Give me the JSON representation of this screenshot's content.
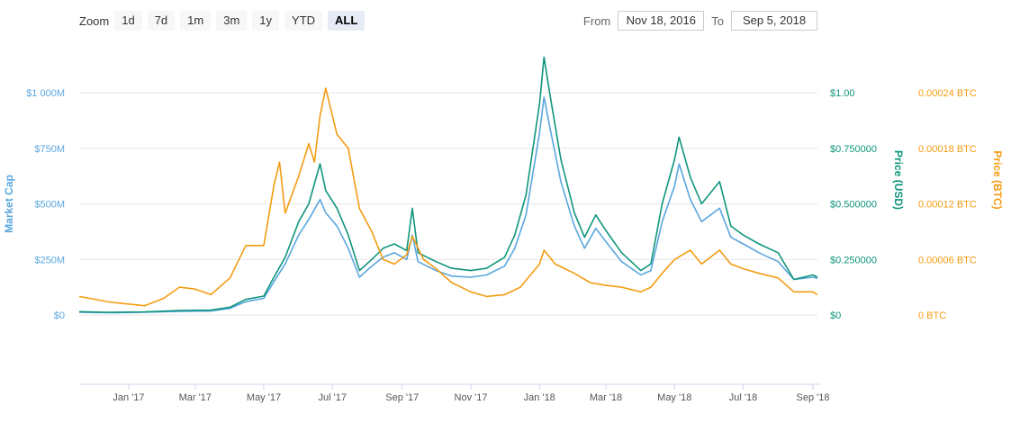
{
  "toolbar": {
    "zoom_label": "Zoom",
    "zoom_buttons": [
      {
        "label": "1d",
        "active": false
      },
      {
        "label": "7d",
        "active": false
      },
      {
        "label": "1m",
        "active": false
      },
      {
        "label": "3m",
        "active": false
      },
      {
        "label": "1y",
        "active": false
      },
      {
        "label": "YTD",
        "active": false
      },
      {
        "label": "ALL",
        "active": true
      }
    ],
    "from_label": "From",
    "from_value": "Nov 18, 2016",
    "to_label": "To",
    "to_value": "Sep 5, 2018"
  },
  "colors": {
    "market_cap": "#5aa7de",
    "price_usd": "#10957c",
    "price_btc": "#f39c12",
    "grid": "#e6e6e6"
  },
  "chart_data": {
    "type": "line",
    "x_range": [
      "2016-11-18",
      "2018-09-05"
    ],
    "x_ticks": [
      {
        "date": "2017-01-01",
        "label": "Jan '17"
      },
      {
        "date": "2017-03-01",
        "label": "Mar '17"
      },
      {
        "date": "2017-05-01",
        "label": "May '17"
      },
      {
        "date": "2017-07-01",
        "label": "Jul '17"
      },
      {
        "date": "2017-09-01",
        "label": "Sep '17"
      },
      {
        "date": "2017-11-01",
        "label": "Nov '17"
      },
      {
        "date": "2018-01-01",
        "label": "Jan '18"
      },
      {
        "date": "2018-03-01",
        "label": "Mar '18"
      },
      {
        "date": "2018-05-01",
        "label": "May '18"
      },
      {
        "date": "2018-07-01",
        "label": "Jul '18"
      },
      {
        "date": "2018-09-01",
        "label": "Sep '18"
      }
    ],
    "axes": {
      "market_cap": {
        "title": "Market Cap",
        "range": [
          0,
          1000
        ],
        "ticks": [
          {
            "v": 0,
            "label": "$0"
          },
          {
            "v": 250,
            "label": "$250M"
          },
          {
            "v": 500,
            "label": "$500M"
          },
          {
            "v": 750,
            "label": "$750M"
          },
          {
            "v": 1000,
            "label": "$1 000M"
          }
        ]
      },
      "price_usd": {
        "title": "Price (USD)",
        "range": [
          0,
          1
        ],
        "ticks": [
          {
            "v": 0,
            "label": "$0"
          },
          {
            "v": 0.25,
            "label": "$0.250000"
          },
          {
            "v": 0.5,
            "label": "$0.500000"
          },
          {
            "v": 0.75,
            "label": "$0.750000"
          },
          {
            "v": 1,
            "label": "$1.00"
          }
        ]
      },
      "price_btc": {
        "title": "Price (BTC)",
        "range": [
          0,
          0.00024
        ],
        "ticks": [
          {
            "v": 0,
            "label": "0 BTC"
          },
          {
            "v": 6e-05,
            "label": "0.00006 BTC"
          },
          {
            "v": 0.00012,
            "label": "0.00012 BTC"
          },
          {
            "v": 0.00018,
            "label": "0.00018 BTC"
          },
          {
            "v": 0.00024,
            "label": "0.00024 BTC"
          }
        ]
      }
    },
    "grid": true,
    "series": [
      {
        "key": "market_cap",
        "axis": "market_cap",
        "points": [
          [
            "2016-11-18",
            12
          ],
          [
            "2016-12-15",
            10
          ],
          [
            "2017-01-15",
            12
          ],
          [
            "2017-02-15",
            16
          ],
          [
            "2017-03-15",
            18
          ],
          [
            "2017-04-01",
            30
          ],
          [
            "2017-04-15",
            60
          ],
          [
            "2017-05-01",
            75
          ],
          [
            "2017-05-10",
            150
          ],
          [
            "2017-05-20",
            230
          ],
          [
            "2017-06-01",
            360
          ],
          [
            "2017-06-10",
            430
          ],
          [
            "2017-06-20",
            520
          ],
          [
            "2017-06-25",
            460
          ],
          [
            "2017-07-05",
            400
          ],
          [
            "2017-07-15",
            300
          ],
          [
            "2017-07-25",
            170
          ],
          [
            "2017-08-05",
            220
          ],
          [
            "2017-08-15",
            260
          ],
          [
            "2017-08-25",
            280
          ],
          [
            "2017-09-05",
            250
          ],
          [
            "2017-09-10",
            360
          ],
          [
            "2017-09-15",
            240
          ],
          [
            "2017-10-01",
            200
          ],
          [
            "2017-10-15",
            175
          ],
          [
            "2017-11-01",
            170
          ],
          [
            "2017-11-15",
            180
          ],
          [
            "2017-12-01",
            220
          ],
          [
            "2017-12-10",
            300
          ],
          [
            "2017-12-20",
            450
          ],
          [
            "2018-01-01",
            820
          ],
          [
            "2018-01-05",
            980
          ],
          [
            "2018-01-10",
            850
          ],
          [
            "2018-01-20",
            600
          ],
          [
            "2018-02-01",
            400
          ],
          [
            "2018-02-10",
            300
          ],
          [
            "2018-02-20",
            390
          ],
          [
            "2018-03-01",
            330
          ],
          [
            "2018-03-15",
            240
          ],
          [
            "2018-04-01",
            180
          ],
          [
            "2018-04-10",
            200
          ],
          [
            "2018-04-20",
            420
          ],
          [
            "2018-05-01",
            580
          ],
          [
            "2018-05-05",
            680
          ],
          [
            "2018-05-15",
            520
          ],
          [
            "2018-05-25",
            420
          ],
          [
            "2018-06-10",
            480
          ],
          [
            "2018-06-20",
            350
          ],
          [
            "2018-07-01",
            320
          ],
          [
            "2018-07-15",
            280
          ],
          [
            "2018-08-01",
            240
          ],
          [
            "2018-08-15",
            160
          ],
          [
            "2018-09-01",
            170
          ],
          [
            "2018-09-05",
            165
          ]
        ]
      },
      {
        "key": "price_usd",
        "axis": "price_usd",
        "points": [
          [
            "2016-11-18",
            0.015
          ],
          [
            "2016-12-15",
            0.012
          ],
          [
            "2017-01-15",
            0.014
          ],
          [
            "2017-02-15",
            0.02
          ],
          [
            "2017-03-15",
            0.022
          ],
          [
            "2017-04-01",
            0.035
          ],
          [
            "2017-04-15",
            0.07
          ],
          [
            "2017-05-01",
            0.085
          ],
          [
            "2017-05-10",
            0.17
          ],
          [
            "2017-05-20",
            0.26
          ],
          [
            "2017-06-01",
            0.42
          ],
          [
            "2017-06-10",
            0.5
          ],
          [
            "2017-06-20",
            0.68
          ],
          [
            "2017-06-25",
            0.56
          ],
          [
            "2017-07-05",
            0.48
          ],
          [
            "2017-07-15",
            0.36
          ],
          [
            "2017-07-25",
            0.2
          ],
          [
            "2017-08-05",
            0.25
          ],
          [
            "2017-08-15",
            0.3
          ],
          [
            "2017-08-25",
            0.32
          ],
          [
            "2017-09-05",
            0.29
          ],
          [
            "2017-09-10",
            0.48
          ],
          [
            "2017-09-15",
            0.28
          ],
          [
            "2017-10-01",
            0.24
          ],
          [
            "2017-10-15",
            0.21
          ],
          [
            "2017-11-01",
            0.2
          ],
          [
            "2017-11-15",
            0.21
          ],
          [
            "2017-12-01",
            0.26
          ],
          [
            "2017-12-10",
            0.36
          ],
          [
            "2017-12-20",
            0.54
          ],
          [
            "2018-01-01",
            0.95
          ],
          [
            "2018-01-05",
            1.16
          ],
          [
            "2018-01-10",
            1.0
          ],
          [
            "2018-01-20",
            0.7
          ],
          [
            "2018-02-01",
            0.46
          ],
          [
            "2018-02-10",
            0.35
          ],
          [
            "2018-02-20",
            0.45
          ],
          [
            "2018-03-01",
            0.38
          ],
          [
            "2018-03-15",
            0.28
          ],
          [
            "2018-04-01",
            0.2
          ],
          [
            "2018-04-10",
            0.23
          ],
          [
            "2018-04-20",
            0.5
          ],
          [
            "2018-05-01",
            0.7
          ],
          [
            "2018-05-05",
            0.8
          ],
          [
            "2018-05-15",
            0.62
          ],
          [
            "2018-05-25",
            0.5
          ],
          [
            "2018-06-10",
            0.6
          ],
          [
            "2018-06-20",
            0.4
          ],
          [
            "2018-07-01",
            0.36
          ],
          [
            "2018-07-15",
            0.32
          ],
          [
            "2018-08-01",
            0.28
          ],
          [
            "2018-08-15",
            0.16
          ],
          [
            "2018-09-01",
            0.18
          ],
          [
            "2018-09-05",
            0.17
          ]
        ]
      },
      {
        "key": "price_btc",
        "axis": "price_btc",
        "points": [
          [
            "2016-11-18",
            2e-05
          ],
          [
            "2016-12-15",
            1.4e-05
          ],
          [
            "2017-01-15",
            1e-05
          ],
          [
            "2017-02-01",
            1.8e-05
          ],
          [
            "2017-02-15",
            3e-05
          ],
          [
            "2017-03-01",
            2.8e-05
          ],
          [
            "2017-03-15",
            2.2e-05
          ],
          [
            "2017-04-01",
            4e-05
          ],
          [
            "2017-04-15",
            7.5e-05
          ],
          [
            "2017-05-01",
            7.5e-05
          ],
          [
            "2017-05-10",
            0.00014
          ],
          [
            "2017-05-15",
            0.000165
          ],
          [
            "2017-05-20",
            0.00011
          ],
          [
            "2017-06-01",
            0.00015
          ],
          [
            "2017-06-10",
            0.000185
          ],
          [
            "2017-06-15",
            0.000165
          ],
          [
            "2017-06-20",
            0.000215
          ],
          [
            "2017-06-25",
            0.000245
          ],
          [
            "2017-07-05",
            0.000195
          ],
          [
            "2017-07-15",
            0.00018
          ],
          [
            "2017-07-25",
            0.000115
          ],
          [
            "2017-08-05",
            9e-05
          ],
          [
            "2017-08-15",
            6e-05
          ],
          [
            "2017-08-25",
            5.5e-05
          ],
          [
            "2017-09-05",
            6.5e-05
          ],
          [
            "2017-09-10",
            8.5e-05
          ],
          [
            "2017-09-20",
            6e-05
          ],
          [
            "2017-10-01",
            5e-05
          ],
          [
            "2017-10-15",
            3.5e-05
          ],
          [
            "2017-11-01",
            2.5e-05
          ],
          [
            "2017-11-15",
            2e-05
          ],
          [
            "2017-12-01",
            2.2e-05
          ],
          [
            "2017-12-15",
            3e-05
          ],
          [
            "2018-01-01",
            5.5e-05
          ],
          [
            "2018-01-05",
            7e-05
          ],
          [
            "2018-01-15",
            5.5e-05
          ],
          [
            "2018-02-01",
            4.5e-05
          ],
          [
            "2018-02-15",
            3.5e-05
          ],
          [
            "2018-03-01",
            3.2e-05
          ],
          [
            "2018-03-15",
            3e-05
          ],
          [
            "2018-04-01",
            2.5e-05
          ],
          [
            "2018-04-10",
            3e-05
          ],
          [
            "2018-04-20",
            4.5e-05
          ],
          [
            "2018-05-01",
            6e-05
          ],
          [
            "2018-05-15",
            7e-05
          ],
          [
            "2018-05-25",
            5.5e-05
          ],
          [
            "2018-06-10",
            7e-05
          ],
          [
            "2018-06-20",
            5.5e-05
          ],
          [
            "2018-07-01",
            5e-05
          ],
          [
            "2018-07-15",
            4.5e-05
          ],
          [
            "2018-08-01",
            4e-05
          ],
          [
            "2018-08-15",
            2.5e-05
          ],
          [
            "2018-09-01",
            2.5e-05
          ],
          [
            "2018-09-05",
            2.2e-05
          ]
        ]
      }
    ]
  }
}
